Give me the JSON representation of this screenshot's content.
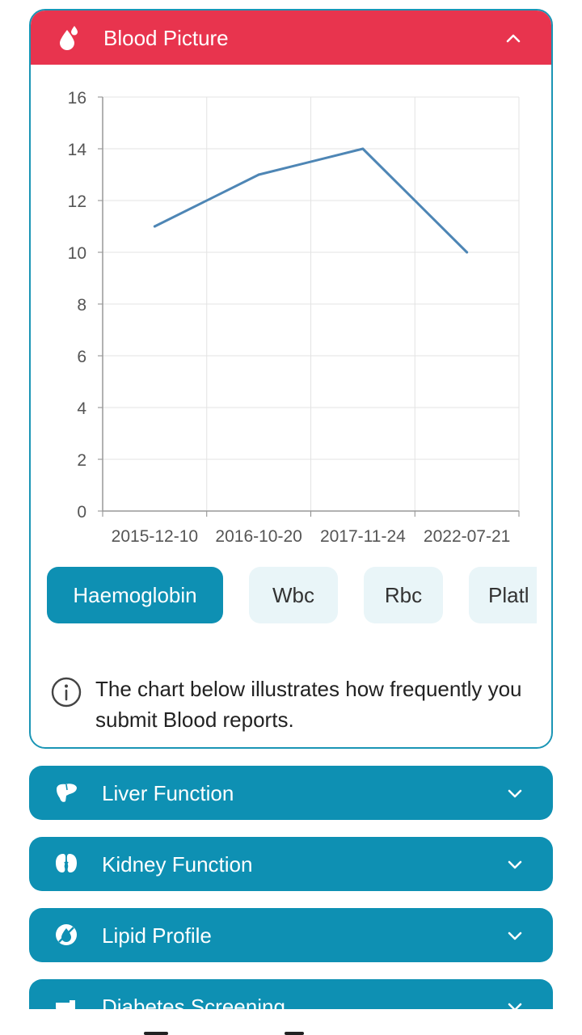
{
  "colors": {
    "accent_red": "#e8344e",
    "accent_teal": "#0e90b3",
    "line": "#4e86b5",
    "pill_bg": "#e9f5f8"
  },
  "blood_picture": {
    "title": "Blood Picture",
    "icon": "blood-drop-icon",
    "expanded": true,
    "info_text": "The chart below illustrates how frequently you submit Blood reports.",
    "tests": [
      {
        "label": "Haemoglobin",
        "selected": true
      },
      {
        "label": "Wbc",
        "selected": false
      },
      {
        "label": "Rbc",
        "selected": false
      },
      {
        "label": "Platl",
        "selected": false
      }
    ]
  },
  "chart_data": {
    "type": "line",
    "title": "",
    "xlabel": "",
    "ylabel": "",
    "x_ticks": [
      "2015-12-10",
      "2016-10-20",
      "2017-11-24",
      "2022-07-21"
    ],
    "y_ticks": [
      "0",
      "2",
      "4",
      "6",
      "8",
      "10",
      "12",
      "14",
      "16"
    ],
    "ylim": [
      0,
      16
    ],
    "grid": true,
    "series": [
      {
        "values": [
          11,
          13,
          14,
          10
        ]
      }
    ]
  },
  "sections": [
    {
      "title": "Liver Function",
      "icon": "liver-icon",
      "expanded": false
    },
    {
      "title": "Kidney Function",
      "icon": "kidney-icon",
      "expanded": false
    },
    {
      "title": "Lipid Profile",
      "icon": "lipid-icon",
      "expanded": false
    },
    {
      "title": "Diabetes Screening",
      "icon": "diabetes-icon",
      "expanded": false
    }
  ]
}
